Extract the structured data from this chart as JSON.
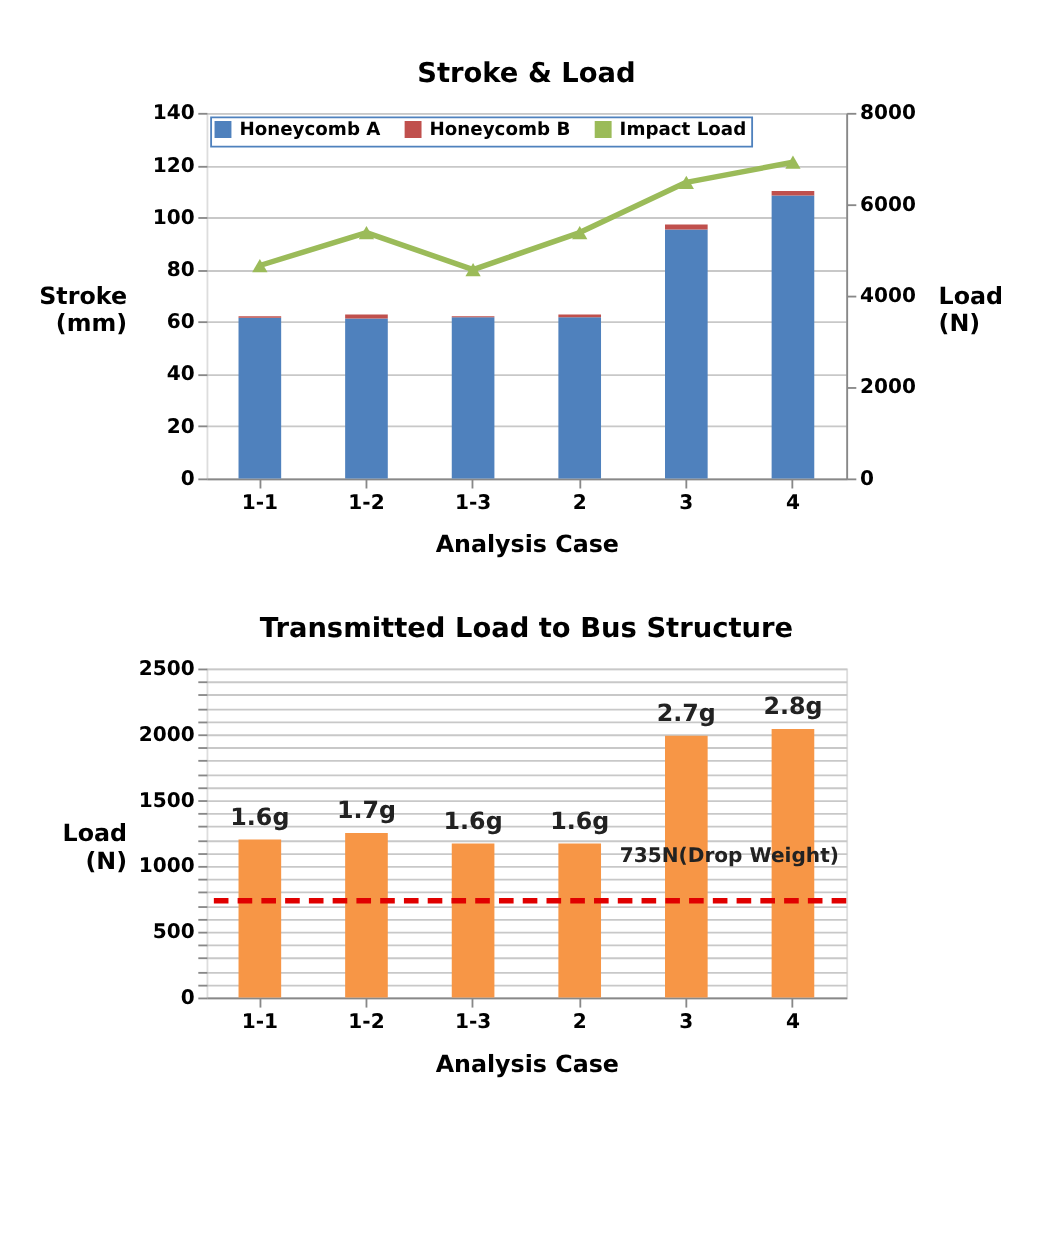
{
  "chart_data": [
    {
      "type": "bar",
      "title": "Stroke & Load",
      "xlabel": "Analysis Case",
      "ylabel": "Stroke\n(mm)",
      "y2label": "Load\n(N)",
      "categories": [
        "1-1",
        "1-2",
        "1-3",
        "2",
        "3",
        "4"
      ],
      "stacked": true,
      "series": [
        {
          "name": "Honeycomb A",
          "color": "#4f81bd",
          "values": [
            61.5,
            61.3,
            61.7,
            61.7,
            95.3,
            108.4
          ]
        },
        {
          "name": "Honeycomb B",
          "color": "#c0504d",
          "values": [
            0.6,
            1.5,
            0.4,
            1.1,
            2.0,
            1.7
          ]
        },
        {
          "name": "Impact Load",
          "color": "#9bbb59",
          "type": "line",
          "axis": "y2",
          "marker": "triangle",
          "values": [
            4660,
            5380,
            4570,
            5380,
            6480,
            6920
          ]
        }
      ],
      "ylim": [
        0,
        140
      ],
      "yticks": [
        0,
        20,
        40,
        60,
        80,
        100,
        120,
        140
      ],
      "y2lim": [
        0,
        8000
      ],
      "y2ticks": [
        0,
        2000,
        4000,
        6000,
        8000
      ],
      "grid": "y",
      "legend": "top left"
    },
    {
      "type": "bar",
      "title": "Transmitted Load to Bus Structure",
      "xlabel": "Analysis Case",
      "ylabel": "Load\n(N)",
      "categories": [
        "1-1",
        "1-2",
        "1-3",
        "2",
        "3",
        "4"
      ],
      "series": [
        {
          "color": "#f79646",
          "values": [
            1200,
            1250,
            1170,
            1170,
            1990,
            2040
          ]
        }
      ],
      "annotations": [
        {
          "text": "1.6g",
          "x": "1-1",
          "y": 1200
        },
        {
          "text": "1.7g",
          "x": "1-2",
          "y": 1250
        },
        {
          "text": "1.6g",
          "x": "1-3",
          "y": 1170
        },
        {
          "text": "1.6g",
          "x": "2",
          "y": 1170
        },
        {
          "text": "2.7g",
          "x": "3",
          "y": 1990
        },
        {
          "text": "2.8g",
          "x": "4",
          "y": 2040
        }
      ],
      "ylim": [
        0,
        2500
      ],
      "yticks": [
        0,
        {
          "value": 100,
          "label": null
        },
        {
          "value": 200,
          "label": null
        },
        {
          "value": 300,
          "label": null
        },
        {
          "value": 400,
          "label": null
        },
        500,
        {
          "value": 600,
          "label": null
        },
        {
          "value": 700,
          "label": null
        },
        {
          "value": 800,
          "label": null
        },
        {
          "value": 900,
          "label": null
        },
        1000,
        {
          "value": 1100,
          "label": null
        },
        {
          "value": 1200,
          "label": null
        },
        {
          "value": 1300,
          "label": null
        },
        {
          "value": 1400,
          "label": null
        },
        1500,
        {
          "value": 1600,
          "label": null
        },
        {
          "value": 1700,
          "label": null
        },
        {
          "value": 1800,
          "label": null
        },
        {
          "value": 1900,
          "label": null
        },
        2000,
        {
          "value": 2100,
          "label": null
        },
        {
          "value": 2200,
          "label": null
        },
        {
          "value": 2300,
          "label": null
        },
        {
          "value": 2400,
          "label": null
        },
        2500
      ],
      "ref_lines": [
        {
          "axis": "y",
          "value": 735,
          "label": "735N(Drop Weight)",
          "color": "#e00000",
          "line_style": "dashed"
        }
      ],
      "grid": "y"
    }
  ]
}
